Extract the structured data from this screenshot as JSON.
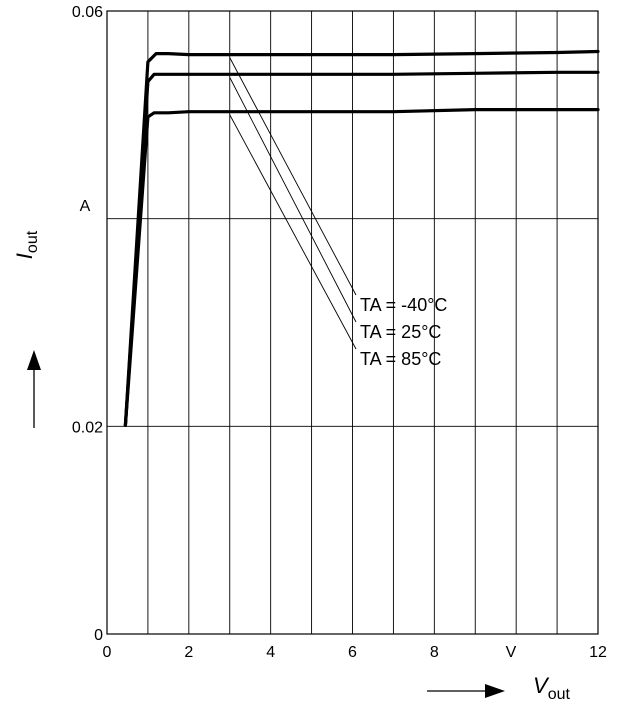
{
  "chart_data": {
    "type": "line",
    "x_axis": {
      "symbol": "V",
      "subscript": "out",
      "unit": "V",
      "range": [
        0,
        12
      ],
      "ticks": [
        {
          "value": 0,
          "label": "0"
        },
        {
          "value": 2,
          "label": "2"
        },
        {
          "value": 4,
          "label": "4"
        },
        {
          "value": 6,
          "label": "6"
        },
        {
          "value": 8,
          "label": "8"
        },
        {
          "value": 12,
          "label": "12"
        }
      ],
      "grid_step": 1
    },
    "y_axis": {
      "symbol": "I",
      "subscript": "out",
      "unit": "A",
      "range": [
        0,
        0.06
      ],
      "ticks": [
        {
          "value": 0,
          "label": "0"
        },
        {
          "value": 0.02,
          "label": "0.02"
        },
        {
          "value": 0.06,
          "label": "0.06"
        }
      ],
      "grid_lines": [
        0.02,
        0.04
      ]
    },
    "grid": true,
    "series": [
      {
        "name": "TA = -40°C",
        "x": [
          0.45,
          1.0,
          1.2,
          1.5,
          2.0,
          3.0,
          5.0,
          7.0,
          9.0,
          11.0,
          12.0
        ],
        "y": [
          0.0201,
          0.0551,
          0.0559,
          0.0559,
          0.0558,
          0.0558,
          0.0558,
          0.0558,
          0.0559,
          0.056,
          0.0561
        ]
      },
      {
        "name": "TA =  25°C",
        "x": [
          0.45,
          1.0,
          1.15,
          1.5,
          2.0,
          3.0,
          5.0,
          7.0,
          9.0,
          11.0,
          12.0
        ],
        "y": [
          0.0201,
          0.0532,
          0.0539,
          0.0539,
          0.0539,
          0.0539,
          0.0539,
          0.0539,
          0.054,
          0.0541,
          0.0541
        ]
      },
      {
        "name": "TA =  85°C",
        "x": [
          0.45,
          1.0,
          1.15,
          1.5,
          2.0,
          3.0,
          5.0,
          7.0,
          9.0,
          11.0,
          12.0
        ],
        "y": [
          0.0201,
          0.0498,
          0.0502,
          0.0502,
          0.0503,
          0.0503,
          0.0503,
          0.0503,
          0.0505,
          0.0505,
          0.0505
        ]
      }
    ],
    "legend": {
      "placement": "center-right",
      "labels": [
        "TA = -40°C",
        "TA =  25°C",
        "TA =  85°C"
      ],
      "leader_points": [
        {
          "x": 3.0,
          "y": 0.0557
        },
        {
          "x": 3.0,
          "y": 0.0538
        },
        {
          "x": 3.0,
          "y": 0.0502
        }
      ]
    }
  }
}
